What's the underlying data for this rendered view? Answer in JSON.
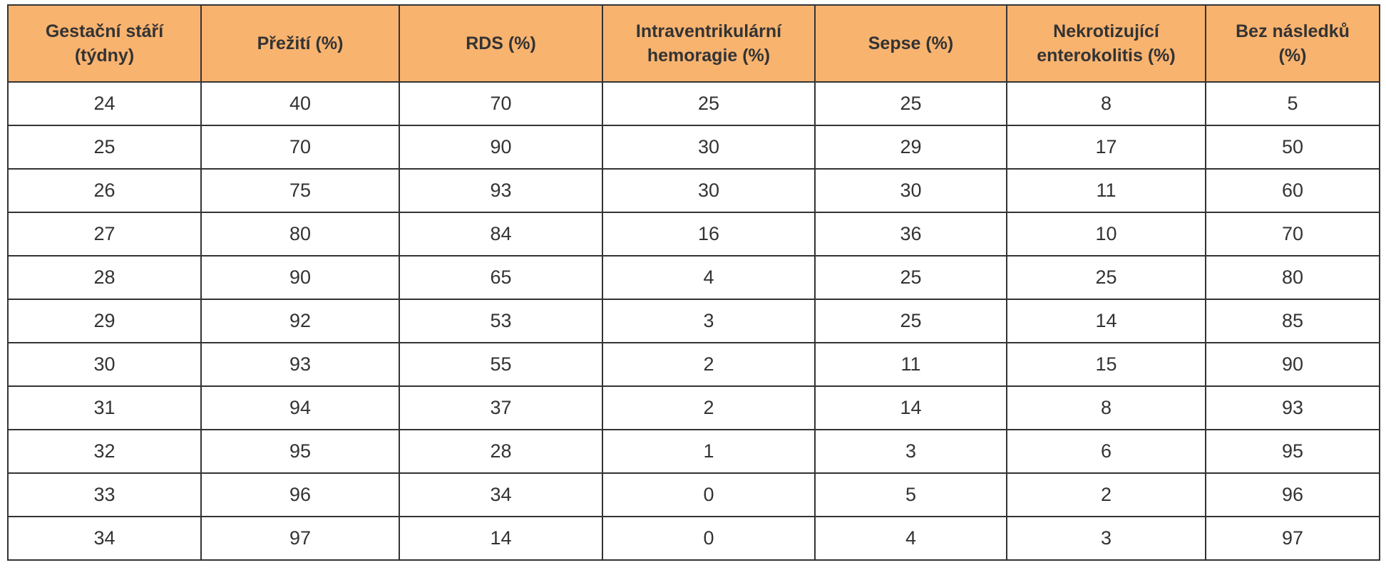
{
  "table": {
    "header": [
      [
        "Gestační stáří",
        "(týdny)"
      ],
      [
        "Přežití (%)"
      ],
      [
        "RDS (%)"
      ],
      [
        "Intraventrikulární",
        "hemoragie (%)"
      ],
      [
        "Sepse (%)"
      ],
      [
        "Nekrotizující",
        "enterokolitis (%)"
      ],
      [
        "Bez následků",
        "(%)"
      ]
    ],
    "rows": [
      [
        24,
        40,
        70,
        25,
        25,
        8,
        5
      ],
      [
        25,
        70,
        90,
        30,
        29,
        17,
        50
      ],
      [
        26,
        75,
        93,
        30,
        30,
        11,
        60
      ],
      [
        27,
        80,
        84,
        16,
        36,
        10,
        70
      ],
      [
        28,
        90,
        65,
        4,
        25,
        25,
        80
      ],
      [
        29,
        92,
        53,
        3,
        25,
        14,
        85
      ],
      [
        30,
        93,
        55,
        2,
        11,
        15,
        90
      ],
      [
        31,
        94,
        37,
        2,
        14,
        8,
        93
      ],
      [
        32,
        95,
        28,
        1,
        3,
        6,
        95
      ],
      [
        33,
        96,
        34,
        0,
        5,
        2,
        96
      ],
      [
        34,
        97,
        14,
        0,
        4,
        3,
        97
      ]
    ]
  }
}
